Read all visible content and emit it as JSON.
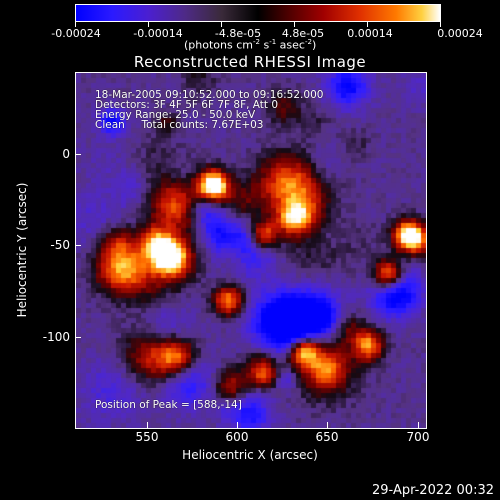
{
  "colorbar": {
    "tick_labels": [
      "-0.00024",
      "-0.00014",
      "-4.8e-05",
      "4.8e-05",
      "0.00014",
      "0.00024"
    ],
    "units": "(photons cm",
    "units_exp1": "-2",
    "units_mid": " s",
    "units_exp2": "-1",
    "units_mid2": " asec",
    "units_exp3": "-2",
    "units_end": ")"
  },
  "title": "Reconstructed RHESSI Image",
  "info": {
    "line1": "18-Mar-2005 09:10:52.000 to 09:16:52.000",
    "line2": "Detectors: 3F 4F 5F 6F 7F 8F, Att 0",
    "line3": "Energy Range: 25.0 - 50.0 keV",
    "line4": "Clean     Total counts: 7.67E+03",
    "peak": "Position of Peak = [588,-14]"
  },
  "axes": {
    "xlabel": "Heliocentric X (arcsec)",
    "ylabel": "Heliocentric Y (arcsec)",
    "xticks": [
      "550",
      "600",
      "650",
      "700"
    ],
    "yticks": [
      "0",
      "-50",
      "-100"
    ],
    "xlim": [
      510,
      705
    ],
    "ylim": [
      -150,
      44
    ]
  },
  "timestamp": "29-Apr-2022 00:32",
  "chart_data": {
    "type": "heatmap",
    "title": "Reconstructed RHESSI Image",
    "xlabel": "Heliocentric X (arcsec)",
    "ylabel": "Heliocentric Y (arcsec)",
    "xlim": [
      510,
      705
    ],
    "ylim": [
      -150,
      44
    ],
    "colorscale_range": [
      -0.00024,
      0.00024
    ],
    "peak_position": [
      588,
      -14
    ]
  },
  "colors": {
    "background": "#000000",
    "foreground": "#ffffff"
  }
}
